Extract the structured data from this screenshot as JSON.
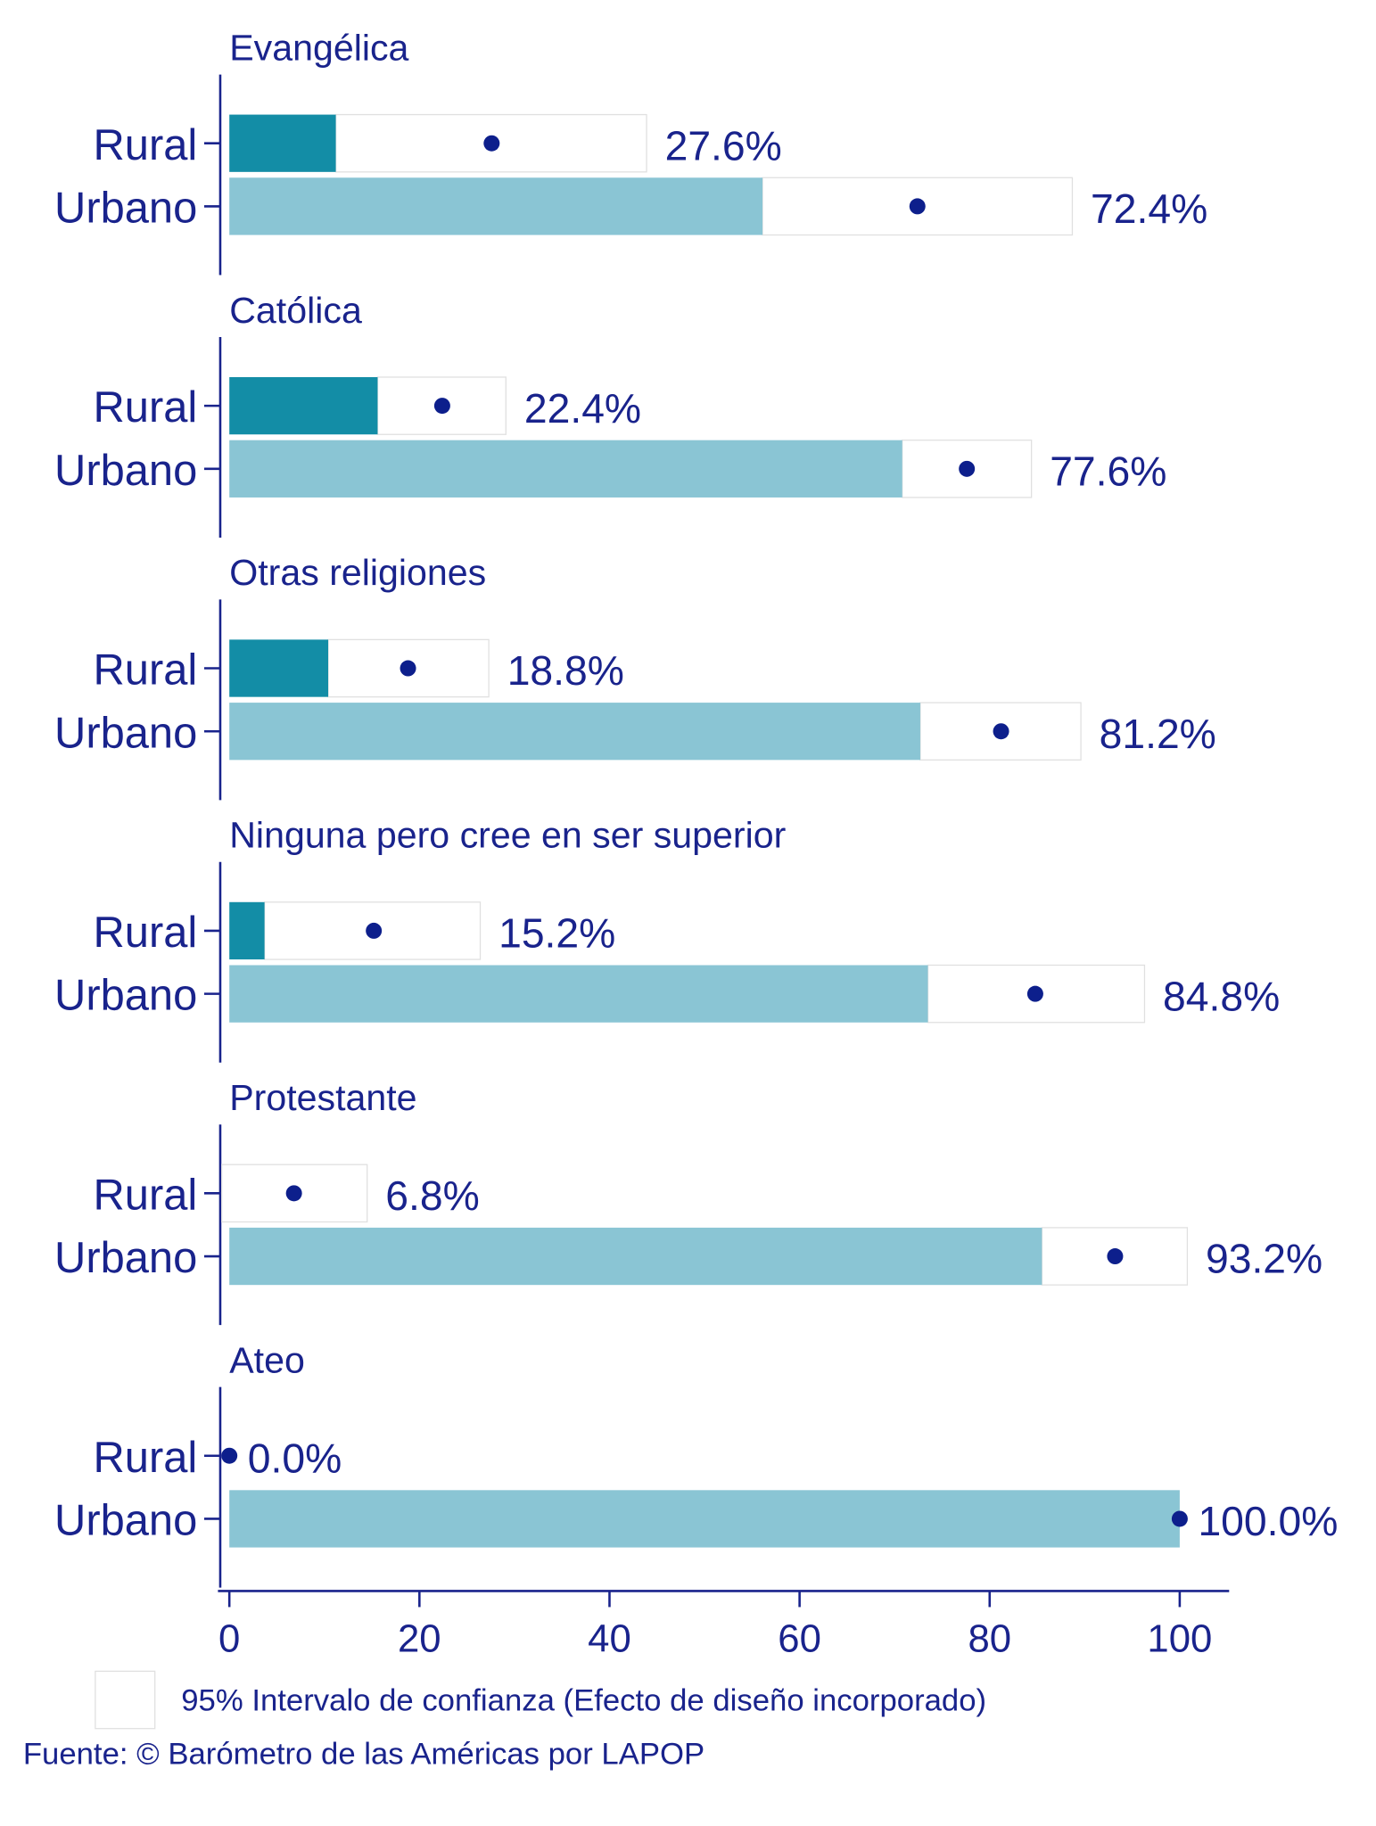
{
  "chart_data": {
    "type": "ci_bar",
    "xlim": [
      -1.2,
      105.2
    ],
    "xticks": [
      0,
      20,
      40,
      60,
      80,
      100
    ],
    "colors": {
      "Rural": "#138da6",
      "Urbano": "#8ac5d4",
      "point": "#0d1f8c"
    },
    "ci_legend": "95% Intervalo de confianza (Efecto de diseño incorporado)",
    "source": "Fuente: © Barómetro de las Américas por LAPOP",
    "panels": [
      {
        "title": "Evangélica",
        "categories": [
          "Rural",
          "Urbano"
        ],
        "values": [
          27.6,
          72.4
        ],
        "value_labels": [
          "27.6%",
          "72.4%"
        ],
        "ci_low": [
          11.2,
          56.1
        ],
        "ci_high": [
          43.9,
          88.7
        ]
      },
      {
        "title": "Católica",
        "categories": [
          "Rural",
          "Urbano"
        ],
        "values": [
          22.4,
          77.6
        ],
        "value_labels": [
          "22.4%",
          "77.6%"
        ],
        "ci_low": [
          15.6,
          70.8
        ],
        "ci_high": [
          29.1,
          84.4
        ]
      },
      {
        "title": "Otras religiones",
        "categories": [
          "Rural",
          "Urbano"
        ],
        "values": [
          18.8,
          81.2
        ],
        "value_labels": [
          "18.8%",
          "81.2%"
        ],
        "ci_low": [
          10.4,
          72.7
        ],
        "ci_high": [
          27.3,
          89.6
        ]
      },
      {
        "title": "Ninguna pero cree en ser superior",
        "categories": [
          "Rural",
          "Urbano"
        ],
        "values": [
          15.2,
          84.8
        ],
        "value_labels": [
          "15.2%",
          "84.8%"
        ],
        "ci_low": [
          3.7,
          73.5
        ],
        "ci_high": [
          26.4,
          96.3
        ]
      },
      {
        "title": "Protestante",
        "categories": [
          "Rural",
          "Urbano"
        ],
        "values": [
          6.8,
          93.2
        ],
        "value_labels": [
          "6.8%",
          "93.2%"
        ],
        "ci_low": [
          -0.8,
          85.5
        ],
        "ci_high": [
          14.5,
          100.8
        ]
      },
      {
        "title": "Ateo",
        "categories": [
          "Rural",
          "Urbano"
        ],
        "values": [
          0,
          100
        ],
        "value_labels": [
          "0.0%",
          "100.0%"
        ],
        "ci_low": [
          0,
          100
        ],
        "ci_high": [
          0,
          100
        ]
      }
    ]
  }
}
